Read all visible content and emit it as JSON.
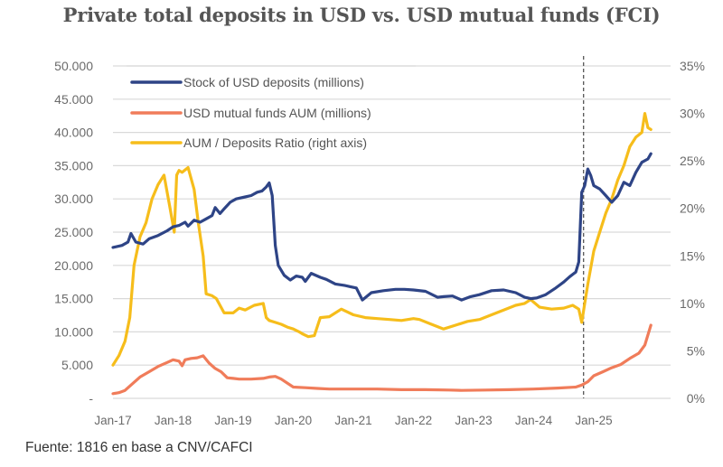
{
  "chart_data": {
    "type": "line",
    "title": "Private total deposits in USD vs. USD mutual funds (FCI)",
    "source": "Fuente: 1816 en base a CNV/CAFCI",
    "xlabel": "",
    "ylabel_left": "",
    "ylabel_right": "",
    "grid": true,
    "legend_position": "top-left",
    "x_range": [
      2017.0,
      2025.95
    ],
    "x_ticks": [
      {
        "x": 2017,
        "label": "Jan-17"
      },
      {
        "x": 2018,
        "label": "Jan-18"
      },
      {
        "x": 2019,
        "label": "Jan-19"
      },
      {
        "x": 2020,
        "label": "Jan-20"
      },
      {
        "x": 2021,
        "label": "Jan-21"
      },
      {
        "x": 2022,
        "label": "Jan-22"
      },
      {
        "x": 2023,
        "label": "Jan-23"
      },
      {
        "x": 2024,
        "label": "Jan-24"
      },
      {
        "x": 2025,
        "label": "Jan-25"
      }
    ],
    "y_left": {
      "range": [
        0,
        50000
      ],
      "ticks": [
        {
          "v": 0,
          "label": "-"
        },
        {
          "v": 5000,
          "label": "5.000"
        },
        {
          "v": 10000,
          "label": "10.000"
        },
        {
          "v": 15000,
          "label": "15.000"
        },
        {
          "v": 20000,
          "label": "20.000"
        },
        {
          "v": 25000,
          "label": "25.000"
        },
        {
          "v": 30000,
          "label": "30.000"
        },
        {
          "v": 35000,
          "label": "35.000"
        },
        {
          "v": 40000,
          "label": "40.000"
        },
        {
          "v": 45000,
          "label": "45.000"
        },
        {
          "v": 50000,
          "label": "50.000"
        }
      ]
    },
    "y_right": {
      "range": [
        0,
        35
      ],
      "unit": "%",
      "ticks": [
        {
          "v": 0,
          "label": "0%"
        },
        {
          "v": 5,
          "label": "5%"
        },
        {
          "v": 10,
          "label": "10%"
        },
        {
          "v": 15,
          "label": "15%"
        },
        {
          "v": 20,
          "label": "20%"
        },
        {
          "v": 25,
          "label": "25%"
        },
        {
          "v": 30,
          "label": "30%"
        },
        {
          "v": 35,
          "label": "35%"
        }
      ]
    },
    "vertical_marker": {
      "x": 2024.83,
      "style": "dashed",
      "color": "#555555"
    },
    "series": [
      {
        "name": "Stock of USD deposits (millions)",
        "axis": "left",
        "color": "#2e4486",
        "x": [
          2017.0,
          2017.15,
          2017.25,
          2017.3,
          2017.38,
          2017.5,
          2017.6,
          2017.75,
          2017.9,
          2018.0,
          2018.1,
          2018.2,
          2018.25,
          2018.35,
          2018.45,
          2018.55,
          2018.65,
          2018.7,
          2018.78,
          2018.85,
          2018.95,
          2019.05,
          2019.2,
          2019.3,
          2019.4,
          2019.48,
          2019.55,
          2019.6,
          2019.65,
          2019.7,
          2019.75,
          2019.85,
          2019.95,
          2020.05,
          2020.15,
          2020.2,
          2020.3,
          2020.45,
          2020.55,
          2020.7,
          2020.85,
          2020.95,
          2021.05,
          2021.15,
          2021.3,
          2021.5,
          2021.7,
          2021.85,
          2022.0,
          2022.2,
          2022.4,
          2022.5,
          2022.65,
          2022.8,
          2022.95,
          2023.1,
          2023.3,
          2023.5,
          2023.7,
          2023.85,
          2023.95,
          2024.05,
          2024.2,
          2024.35,
          2024.5,
          2024.6,
          2024.7,
          2024.75,
          2024.8,
          2024.85,
          2024.9,
          2024.95,
          2025.0,
          2025.1,
          2025.2,
          2025.3,
          2025.4,
          2025.5,
          2025.6,
          2025.7,
          2025.8,
          2025.9,
          2025.95
        ],
        "y": [
          22700,
          23000,
          23500,
          24800,
          23500,
          23200,
          24000,
          24500,
          25200,
          25800,
          26000,
          26500,
          25900,
          26800,
          26500,
          27000,
          27500,
          28700,
          27800,
          28500,
          29500,
          30000,
          30300,
          30500,
          31000,
          31200,
          31800,
          32400,
          30500,
          23000,
          20000,
          18500,
          17800,
          18400,
          18200,
          17600,
          18800,
          18200,
          17900,
          17200,
          17000,
          16800,
          16600,
          14800,
          15900,
          16200,
          16400,
          16400,
          16300,
          16100,
          15200,
          15300,
          15400,
          14800,
          15300,
          15600,
          16200,
          16300,
          15900,
          15200,
          15000,
          15100,
          15600,
          16500,
          17500,
          18300,
          19000,
          20500,
          31000,
          32000,
          34500,
          33500,
          32000,
          31500,
          30500,
          29500,
          30500,
          32500,
          32000,
          34000,
          35500,
          36000,
          36800
        ]
      },
      {
        "name": "USD mutual funds AUM (millions)",
        "axis": "left",
        "color": "#f07c5a",
        "x": [
          2017.0,
          2017.1,
          2017.2,
          2017.3,
          2017.45,
          2017.6,
          2017.75,
          2017.9,
          2018.0,
          2018.1,
          2018.15,
          2018.2,
          2018.3,
          2018.4,
          2018.5,
          2018.6,
          2018.7,
          2018.8,
          2018.9,
          2019.0,
          2019.1,
          2019.3,
          2019.5,
          2019.6,
          2019.7,
          2019.8,
          2020.0,
          2020.2,
          2020.4,
          2020.6,
          2021.0,
          2021.4,
          2021.8,
          2022.2,
          2022.6,
          2022.8,
          2023.2,
          2023.6,
          2024.0,
          2024.4,
          2024.7,
          2024.8,
          2024.9,
          2025.0,
          2025.15,
          2025.3,
          2025.45,
          2025.6,
          2025.75,
          2025.85,
          2025.95
        ],
        "y": [
          700,
          850,
          1200,
          2000,
          3200,
          4000,
          4800,
          5400,
          5800,
          5600,
          4900,
          5800,
          6000,
          6100,
          6400,
          5300,
          4500,
          4000,
          3100,
          3000,
          2900,
          2900,
          3000,
          3200,
          3300,
          2900,
          1700,
          1600,
          1500,
          1400,
          1400,
          1400,
          1300,
          1300,
          1250,
          1200,
          1250,
          1300,
          1400,
          1550,
          1700,
          2000,
          2500,
          3400,
          4000,
          4600,
          5100,
          6000,
          6800,
          8000,
          11000
        ]
      },
      {
        "name": "AUM / Deposits Ratio (right axis)",
        "axis": "right",
        "color": "#f6bd1b",
        "x": [
          2017.0,
          2017.1,
          2017.2,
          2017.28,
          2017.35,
          2017.45,
          2017.55,
          2017.65,
          2017.75,
          2017.85,
          2017.95,
          2018.02,
          2018.06,
          2018.1,
          2018.15,
          2018.25,
          2018.35,
          2018.42,
          2018.5,
          2018.55,
          2018.65,
          2018.72,
          2018.85,
          2019.0,
          2019.1,
          2019.2,
          2019.35,
          2019.5,
          2019.55,
          2019.6,
          2019.7,
          2019.8,
          2019.9,
          2020.0,
          2020.1,
          2020.15,
          2020.25,
          2020.35,
          2020.45,
          2020.6,
          2020.8,
          2021.0,
          2021.2,
          2021.4,
          2021.6,
          2021.8,
          2022.0,
          2022.1,
          2022.3,
          2022.5,
          2022.7,
          2022.9,
          2023.1,
          2023.3,
          2023.5,
          2023.7,
          2023.85,
          2023.95,
          2024.1,
          2024.3,
          2024.5,
          2024.65,
          2024.75,
          2024.8,
          2024.85,
          2024.9,
          2025.0,
          2025.1,
          2025.2,
          2025.3,
          2025.4,
          2025.5,
          2025.6,
          2025.7,
          2025.8,
          2025.85,
          2025.9,
          2025.95
        ],
        "y": [
          3.5,
          4.5,
          6.0,
          8.5,
          14.0,
          17.0,
          18.5,
          21.0,
          22.5,
          23.5,
          20.0,
          17.5,
          23.5,
          24.0,
          23.8,
          24.3,
          22.0,
          18.5,
          15.0,
          11.0,
          10.8,
          10.5,
          9.0,
          9.0,
          9.5,
          9.3,
          9.8,
          10.0,
          8.5,
          8.2,
          8.0,
          7.8,
          7.5,
          7.3,
          7.0,
          6.8,
          6.5,
          6.6,
          8.5,
          8.6,
          9.4,
          8.8,
          8.5,
          8.4,
          8.3,
          8.2,
          8.4,
          8.3,
          7.8,
          7.3,
          7.7,
          8.1,
          8.3,
          8.8,
          9.3,
          9.8,
          10.0,
          10.4,
          9.6,
          9.4,
          9.5,
          9.8,
          9.4,
          8.0,
          10.0,
          12.0,
          15.5,
          17.5,
          19.5,
          21.0,
          23.0,
          24.5,
          26.5,
          27.5,
          28.0,
          30.0,
          28.5,
          28.3
        ]
      }
    ]
  }
}
